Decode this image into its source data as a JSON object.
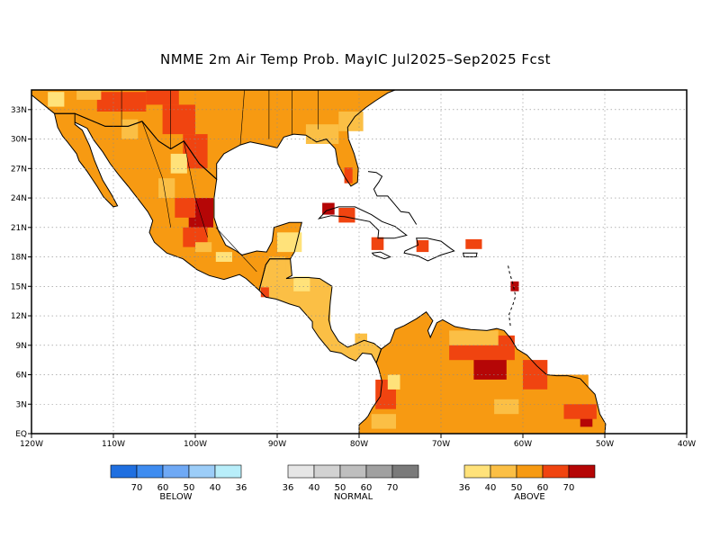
{
  "title": "NMME 2m Air Temp Prob. MayIC  Jul2025–Sep2025 Fcst",
  "map": {
    "lon_range": [
      -120,
      -40
    ],
    "lat_range": [
      0,
      35
    ],
    "x_ticks": [
      "120W",
      "110W",
      "100W",
      "90W",
      "80W",
      "70W",
      "60W",
      "50W",
      "40W"
    ],
    "y_ticks": [
      "EQ",
      "3N",
      "6N",
      "9N",
      "12N",
      "15N",
      "18N",
      "21N",
      "24N",
      "27N",
      "30N",
      "33N"
    ]
  },
  "legend": {
    "below": {
      "name": "BELOW",
      "labels": [
        "70",
        "60",
        "50",
        "40",
        "36"
      ],
      "colors": [
        "#1f6fe0",
        "#3e8cf0",
        "#6fa9f5",
        "#9ccdf8",
        "#b8eefa"
      ]
    },
    "normal": {
      "name": "NORMAL",
      "labels": [
        "36",
        "40",
        "50",
        "60",
        "70"
      ],
      "colors": [
        "#e6e6e6",
        "#d2d2d2",
        "#bebebe",
        "#a0a0a0",
        "#7a7a7a"
      ]
    },
    "above": {
      "name": "ABOVE",
      "labels": [
        "36",
        "40",
        "50",
        "60",
        "70"
      ],
      "colors": [
        "#ffe27a",
        "#fbbf45",
        "#f79a12",
        "#f04410",
        "#b50606"
      ]
    }
  },
  "region_colors": {
    "us_south": "#f79a12",
    "mexico": "#f79a12",
    "central_america": "#fbbf45",
    "south_america": "#f79a12",
    "caribbean": "#f04410"
  }
}
